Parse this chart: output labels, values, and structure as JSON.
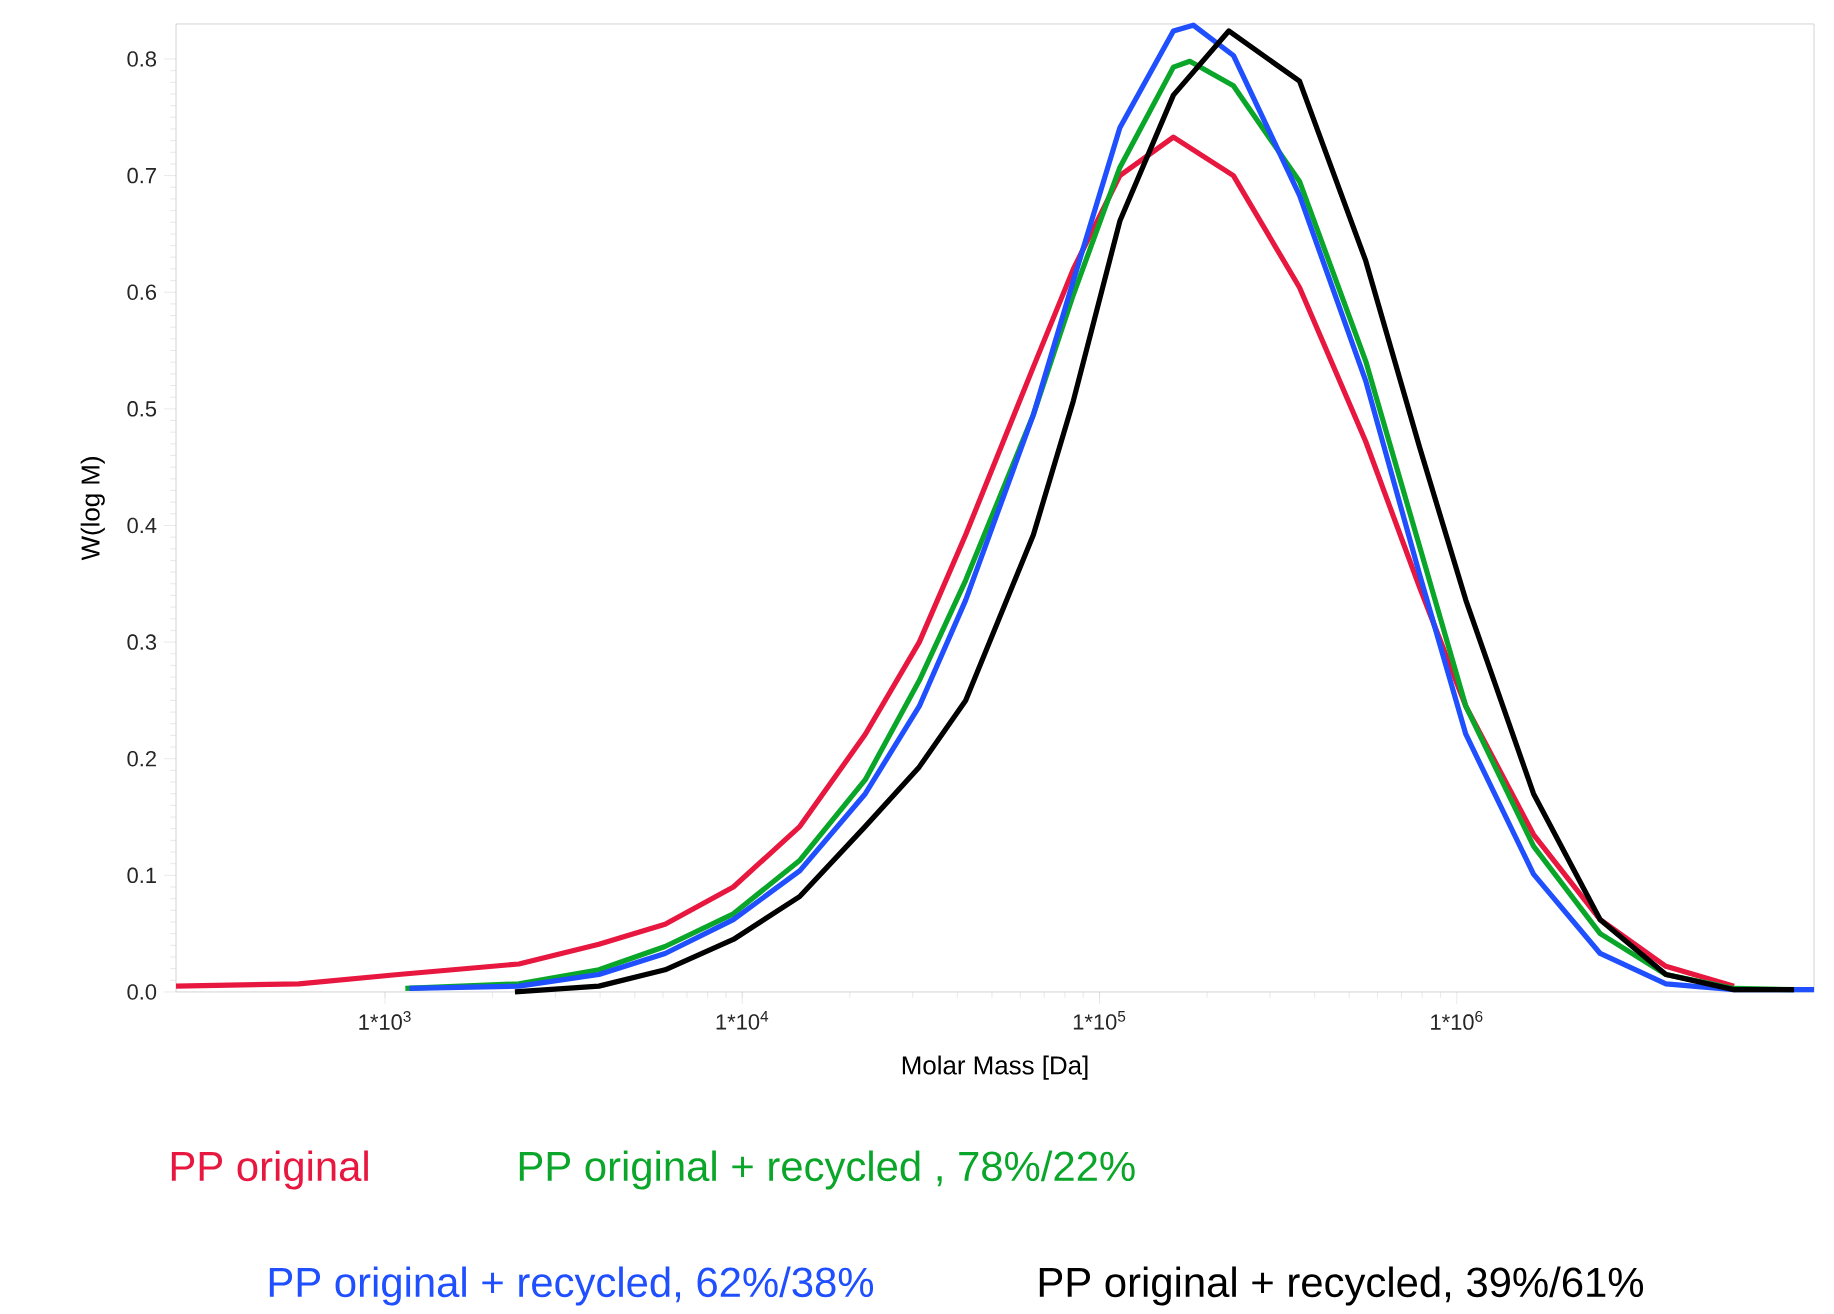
{
  "chart_data": {
    "type": "line",
    "xlabel": "Molar Mass [Da]",
    "ylabel": "W(log M)",
    "log": "x",
    "legend": "bottom",
    "grid": false,
    "xlim": [
      260,
      10000000
    ],
    "ylim": [
      0,
      0.83
    ],
    "xticks": [
      {
        "value": 1000,
        "label": "1*10$^{3}$"
      },
      {
        "value": 10000,
        "label": "1*10$^{4}$"
      },
      {
        "value": 100000,
        "label": "1*10$^{5}$"
      },
      {
        "value": 1000000,
        "label": "1*10$^{6}$"
      }
    ],
    "yticks": [
      {
        "value": 0,
        "label": "0.0"
      },
      0.1,
      0.2,
      0.3,
      0.4,
      0.5,
      0.6,
      0.7,
      0.8
    ],
    "series": [
      {
        "name": "PP original",
        "color": "#e8173f",
        "x": [
          260,
          574,
          1090,
          2370,
          3970,
          6080,
          9440,
          14500,
          22100,
          31300,
          42200,
          65300,
          84500,
          114000,
          161000,
          237000,
          363000,
          556000,
          787000,
          1060000,
          1640000,
          2520000,
          3850000,
          5970000
        ],
        "values": [
          0.005,
          0.007,
          0.015,
          0.024,
          0.041,
          0.058,
          0.09,
          0.142,
          0.221,
          0.3,
          0.392,
          0.536,
          0.62,
          0.7,
          0.733,
          0.7,
          0.604,
          0.472,
          0.347,
          0.245,
          0.135,
          0.062,
          0.022,
          0.005
        ]
      },
      {
        "name": "PP original + recycled , 78%/22%",
        "color": "#0aa62a",
        "x": [
          1140,
          2370,
          3970,
          6080,
          9440,
          14500,
          22100,
          31300,
          42200,
          65300,
          84500,
          114000,
          161000,
          179000,
          237000,
          363000,
          556000,
          787000,
          1060000,
          1640000,
          2520000,
          3850000,
          5970000,
          8790000
        ],
        "values": [
          0.003,
          0.007,
          0.019,
          0.039,
          0.067,
          0.113,
          0.182,
          0.267,
          0.353,
          0.495,
          0.598,
          0.707,
          0.793,
          0.798,
          0.777,
          0.695,
          0.541,
          0.382,
          0.245,
          0.125,
          0.05,
          0.015,
          0.003,
          0.002
        ]
      },
      {
        "name": "PP original + recycled, 62%/38%",
        "color": "#1f4fff",
        "x": [
          1170,
          2370,
          3970,
          6080,
          9440,
          14500,
          22100,
          31300,
          42200,
          65300,
          84500,
          114000,
          161000,
          183000,
          237000,
          363000,
          556000,
          787000,
          1060000,
          1640000,
          2520000,
          3850000,
          5970000,
          10000000
        ],
        "values": [
          0.003,
          0.005,
          0.015,
          0.033,
          0.062,
          0.104,
          0.17,
          0.245,
          0.336,
          0.495,
          0.61,
          0.741,
          0.824,
          0.829,
          0.803,
          0.683,
          0.524,
          0.358,
          0.221,
          0.101,
          0.033,
          0.007,
          0.002,
          0.002
        ]
      },
      {
        "name": "PP original + recycled, 39%/61%",
        "color": "#000000",
        "x": [
          2310,
          3970,
          6080,
          9440,
          14500,
          22100,
          31300,
          42200,
          65300,
          84500,
          114000,
          161000,
          230000,
          363000,
          556000,
          787000,
          1060000,
          1640000,
          2520000,
          3850000,
          5970000,
          8790000
        ],
        "values": [
          0.0,
          0.005,
          0.019,
          0.045,
          0.082,
          0.142,
          0.193,
          0.25,
          0.392,
          0.507,
          0.661,
          0.769,
          0.824,
          0.781,
          0.627,
          0.467,
          0.336,
          0.17,
          0.062,
          0.015,
          0.002,
          0.002
        ]
      }
    ]
  }
}
